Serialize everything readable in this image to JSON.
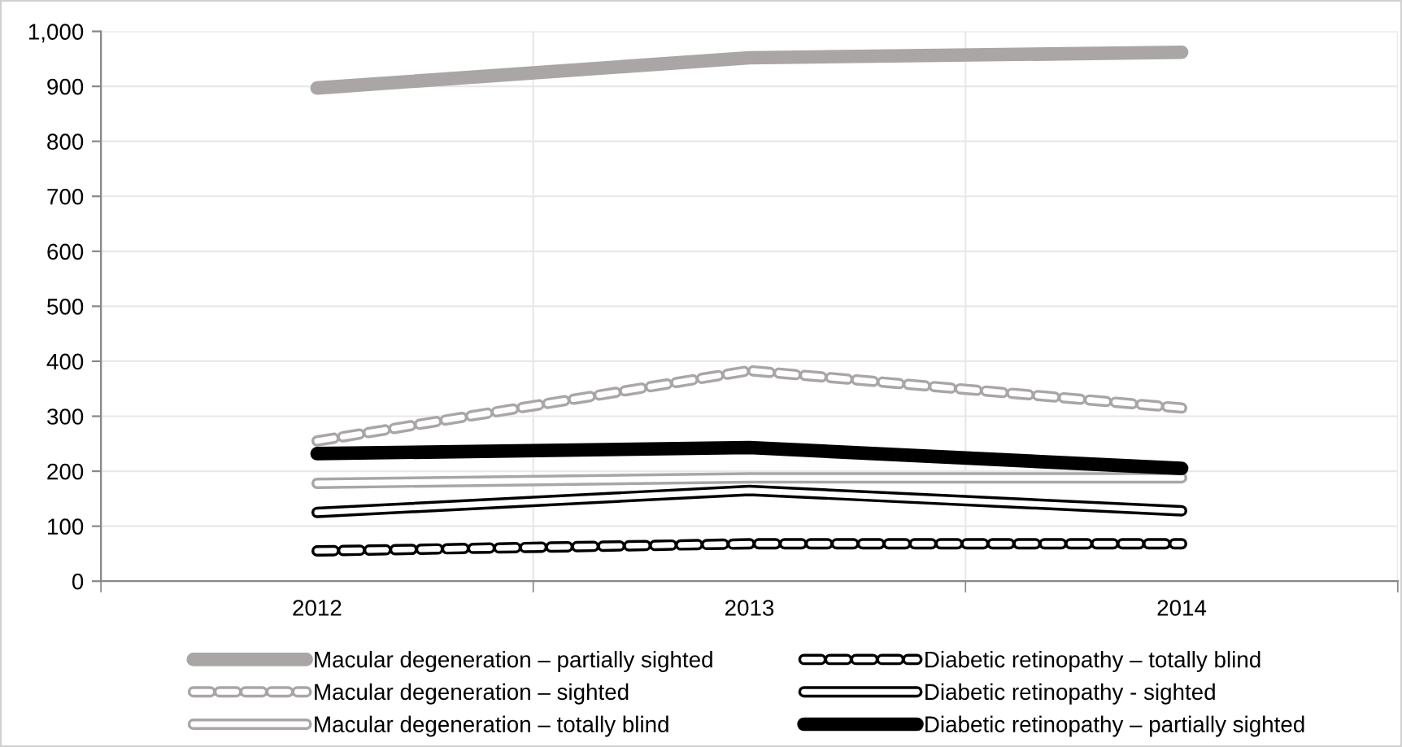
{
  "chart_data": {
    "type": "line",
    "categories": [
      "2012",
      "2013",
      "2014"
    ],
    "series": [
      {
        "name": "Macular degeneration – partially sighted",
        "color": "#aaa6a6",
        "line_style": "solid",
        "values": [
          897,
          952,
          962
        ]
      },
      {
        "name": "Macular degeneration – sighted",
        "color": "#aaa6a6",
        "line_style": "dashed",
        "values": [
          255,
          383,
          315
        ]
      },
      {
        "name": "Macular degeneration – totally blind",
        "color": "#aaa6a6",
        "line_style": "solid",
        "values": [
          178,
          188,
          188
        ]
      },
      {
        "name": "Diabetic retinopathy – totally blind",
        "color": "#000000",
        "line_style": "dashed",
        "values": [
          55,
          68,
          68
        ]
      },
      {
        "name": "Diabetic retinopathy - sighted",
        "color": "#000000",
        "line_style": "solid",
        "values": [
          125,
          165,
          128
        ]
      },
      {
        "name": "Diabetic retinopathy – partially sighted",
        "color": "#000000",
        "line_style": "solid",
        "values": [
          232,
          243,
          205
        ]
      }
    ],
    "ylim": [
      0,
      1000
    ],
    "yticks": [
      0,
      100,
      200,
      300,
      400,
      500,
      600,
      700,
      800,
      900,
      {
        "value": 1000,
        "label": "1,000"
      }
    ],
    "grid": true,
    "legend": "bottom",
    "marker": "none"
  }
}
